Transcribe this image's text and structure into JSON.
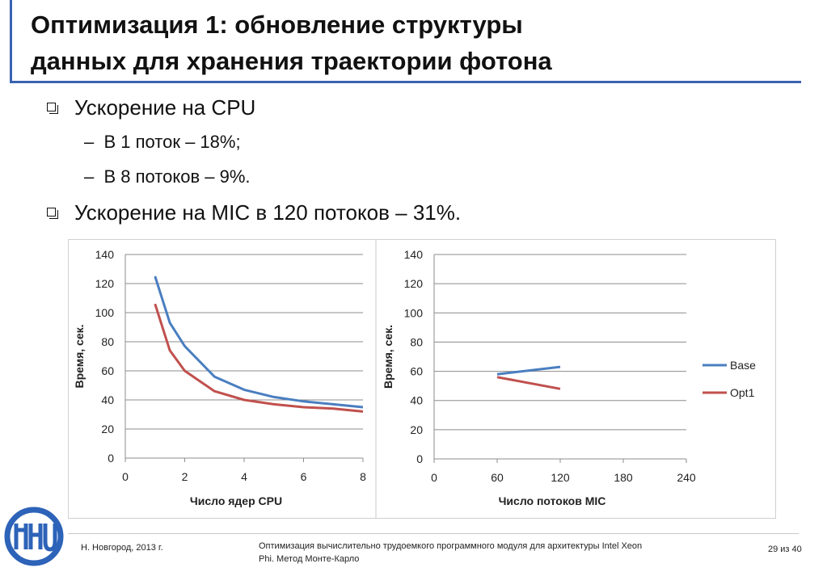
{
  "slide": {
    "title_line1": "Оптимизация 1: обновление структуры",
    "title_line2": "данных для хранения траектории фотона",
    "bullets": [
      {
        "text": "Ускорение на CPU"
      },
      {
        "text": "Ускорение на MIC в 120 потоков – 31%."
      }
    ],
    "sub_bullets": [
      {
        "text": "В 1 поток – 18%;"
      },
      {
        "text": "В 8 потоков – 9%."
      }
    ],
    "sub_dash": "–"
  },
  "chart_data": [
    {
      "type": "line",
      "xlabel": "Число ядер CPU",
      "ylabel": "Время, сек.",
      "xlim": [
        0,
        8
      ],
      "ylim": [
        0,
        140
      ],
      "x_ticks": [
        "0",
        "2",
        "4",
        "6",
        "8"
      ],
      "y_ticks": [
        "0",
        "20",
        "40",
        "60",
        "80",
        "100",
        "120",
        "140"
      ],
      "grid": true,
      "series": [
        {
          "name": "Base",
          "color": "#4a7ec0",
          "x": [
            1,
            1.5,
            2,
            3,
            4,
            5,
            6,
            7,
            8
          ],
          "y": [
            125,
            93,
            77,
            56,
            47,
            42,
            39,
            37,
            35
          ]
        },
        {
          "name": "Opt1",
          "color": "#c0504d",
          "x": [
            1,
            1.5,
            2,
            3,
            4,
            5,
            6,
            7,
            8
          ],
          "y": [
            106,
            74,
            60,
            46,
            40,
            37,
            35,
            34,
            32
          ]
        }
      ]
    },
    {
      "type": "line",
      "xlabel": "Число потоков MIC",
      "ylabel": "Время, сек.",
      "xlim": [
        0,
        240
      ],
      "ylim": [
        0,
        140
      ],
      "x_ticks": [
        "0",
        "60",
        "120",
        "180",
        "240"
      ],
      "y_ticks": [
        "0",
        "20",
        "40",
        "60",
        "80",
        "100",
        "120",
        "140"
      ],
      "grid": true,
      "legend": "right",
      "series": [
        {
          "name": "Base",
          "color": "#4a7ec0",
          "x": [
            60,
            120
          ],
          "y": [
            58,
            63
          ]
        },
        {
          "name": "Opt1",
          "color": "#c0504d",
          "x": [
            60,
            120
          ],
          "y": [
            56,
            48
          ]
        }
      ]
    }
  ],
  "footer": {
    "left": "Н. Новгород, 2013 г.",
    "center_line1": "Оптимизация вычислительно трудоемкого программного модуля для архитектуры Intel Xeon",
    "center_line2": "Phi. Метод Монте-Карло",
    "page": "29 из 40"
  },
  "logo": {
    "name": "unn-logo",
    "color": "#2d63b8"
  }
}
